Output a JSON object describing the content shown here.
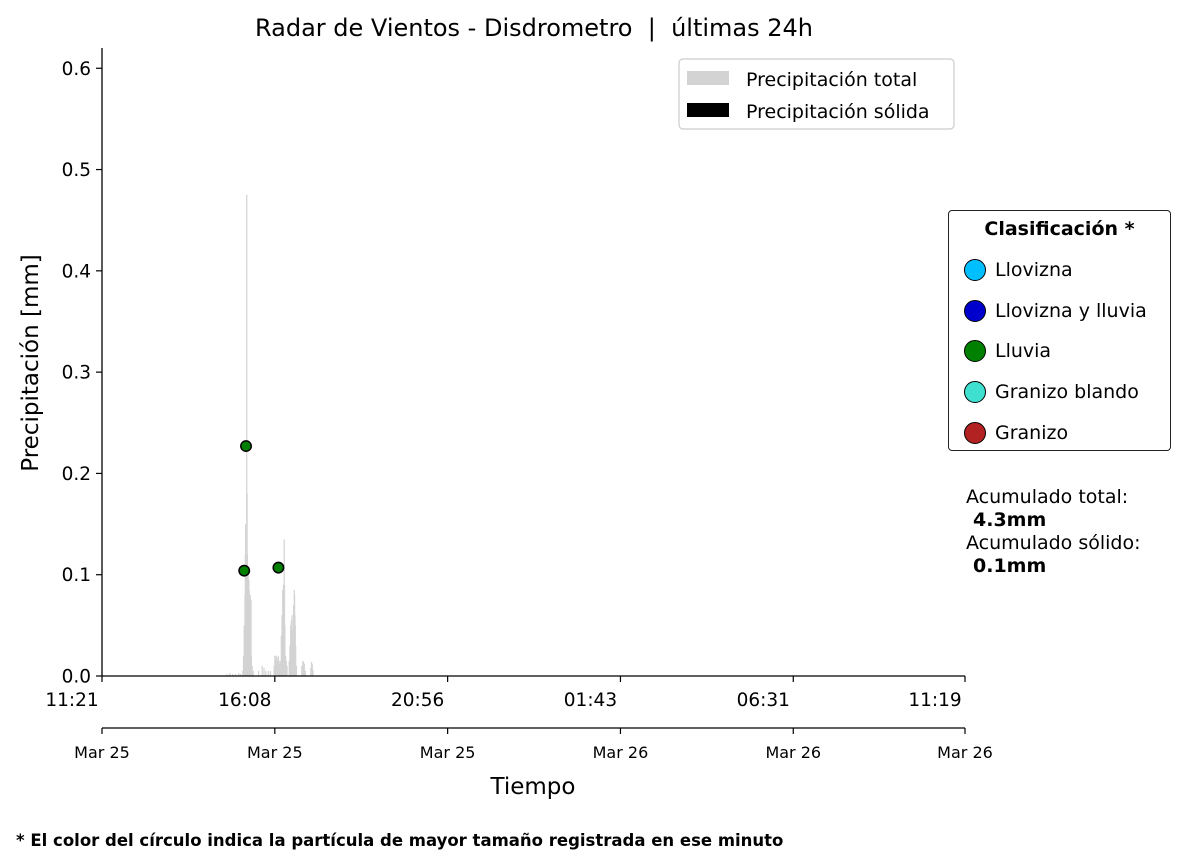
{
  "chart_data": {
    "type": "bar",
    "title": "Radar de Vientos - Disdrometro  |  últimas 24h",
    "xlabel": "Tiempo",
    "ylabel": "Precipitación [mm]",
    "ylim": [
      0,
      0.62
    ],
    "yticks": [
      "0.0",
      "0.1",
      "0.2",
      "0.3",
      "0.4",
      "0.5",
      "0.6"
    ],
    "xlim_hours": [
      0,
      23.97
    ],
    "xticks": [
      {
        "hour": 0,
        "time": "11:21",
        "date": "Mar 25"
      },
      {
        "hour": 4.8,
        "time": "16:08",
        "date": "Mar 25"
      },
      {
        "hour": 9.6,
        "time": "20:56",
        "date": "Mar 25"
      },
      {
        "hour": 14.4,
        "time": "01:43",
        "date": "Mar 26"
      },
      {
        "hour": 19.2,
        "time": "06:31",
        "date": "Mar 26"
      },
      {
        "hour": 23.97,
        "time": "11:19",
        "date": "Mar 26"
      }
    ],
    "legend": {
      "placement": "top-right",
      "entries": [
        {
          "label": "Precipitación total",
          "color": "#d3d3d3"
        },
        {
          "label": "Precipitación sólida",
          "color": "#000000"
        }
      ]
    },
    "series": [
      {
        "name": "Precipitación total",
        "color": "#d3d3d3",
        "points": [
          [
            3.47,
            0.002
          ],
          [
            3.55,
            0.003
          ],
          [
            3.63,
            0.002
          ],
          [
            3.71,
            0.002
          ],
          [
            3.8,
            0.003
          ],
          [
            3.85,
            0.002
          ],
          [
            3.91,
            0.005
          ],
          [
            3.93,
            0.02
          ],
          [
            3.95,
            0.05
          ],
          [
            3.97,
            0.08
          ],
          [
            3.98,
            0.12
          ],
          [
            3.99,
            0.15
          ],
          [
            4.0,
            0.1
          ],
          [
            4.01,
            0.07
          ],
          [
            4.02,
            0.475
          ],
          [
            4.03,
            0.18
          ],
          [
            4.04,
            0.12
          ],
          [
            4.05,
            0.09
          ],
          [
            4.06,
            0.1
          ],
          [
            4.07,
            0.08
          ],
          [
            4.08,
            0.095
          ],
          [
            4.09,
            0.085
          ],
          [
            4.1,
            0.075
          ],
          [
            4.11,
            0.07
          ],
          [
            4.12,
            0.08
          ],
          [
            4.13,
            0.07
          ],
          [
            4.14,
            0.075
          ],
          [
            4.15,
            0.02
          ],
          [
            4.17,
            0.01
          ],
          [
            4.2,
            0.005
          ],
          [
            4.35,
            0.005
          ],
          [
            4.45,
            0.01
          ],
          [
            4.5,
            0.008
          ],
          [
            4.55,
            0.005
          ],
          [
            4.62,
            0.005
          ],
          [
            4.68,
            0.005
          ],
          [
            4.78,
            0.01
          ],
          [
            4.8,
            0.02
          ],
          [
            4.82,
            0.015
          ],
          [
            4.84,
            0.02
          ],
          [
            4.86,
            0.018
          ],
          [
            4.88,
            0.015
          ],
          [
            4.9,
            0.02
          ],
          [
            4.92,
            0.015
          ],
          [
            4.94,
            0.012
          ],
          [
            4.96,
            0.015
          ],
          [
            4.98,
            0.04
          ],
          [
            5.0,
            0.06
          ],
          [
            5.02,
            0.085
          ],
          [
            5.03,
            0.07
          ],
          [
            5.04,
            0.09
          ],
          [
            5.05,
            0.075
          ],
          [
            5.06,
            0.135
          ],
          [
            5.07,
            0.09
          ],
          [
            5.08,
            0.05
          ],
          [
            5.1,
            0.02
          ],
          [
            5.12,
            0.015
          ],
          [
            5.14,
            0.01
          ],
          [
            5.2,
            0.015
          ],
          [
            5.22,
            0.03
          ],
          [
            5.24,
            0.05
          ],
          [
            5.26,
            0.055
          ],
          [
            5.28,
            0.06
          ],
          [
            5.3,
            0.045
          ],
          [
            5.32,
            0.07
          ],
          [
            5.34,
            0.085
          ],
          [
            5.35,
            0.08
          ],
          [
            5.36,
            0.06
          ],
          [
            5.37,
            0.05
          ],
          [
            5.38,
            0.03
          ],
          [
            5.4,
            0.01
          ],
          [
            5.55,
            0.01
          ],
          [
            5.58,
            0.015
          ],
          [
            5.6,
            0.014
          ],
          [
            5.62,
            0.012
          ],
          [
            5.65,
            0.005
          ],
          [
            5.8,
            0.008
          ],
          [
            5.82,
            0.014
          ],
          [
            5.84,
            0.012
          ],
          [
            5.86,
            0.006
          ]
        ]
      },
      {
        "name": "Precipitación sólida",
        "color": "#000000",
        "points": []
      }
    ],
    "particles": [
      {
        "hour": 3.95,
        "value": 0.104,
        "class": "Lluvia"
      },
      {
        "hour": 4.0,
        "value": 0.227,
        "class": "Lluvia"
      },
      {
        "hour": 4.9,
        "value": 0.107,
        "class": "Lluvia"
      }
    ]
  },
  "classification": {
    "title": "Clasificación *",
    "items": [
      {
        "label": "Llovizna",
        "color": "#00bfff"
      },
      {
        "label": "Llovizna y lluvia",
        "color": "#0000cd"
      },
      {
        "label": "Lluvia",
        "color": "#008000"
      },
      {
        "label": "Granizo blando",
        "color": "#40e0d0"
      },
      {
        "label": "Granizo",
        "color": "#b22222"
      }
    ]
  },
  "accumulated": {
    "total_label": "Acumulado total:",
    "total_value": "4.3mm",
    "solid_label": "Acumulado sólido:",
    "solid_value": "0.1mm"
  },
  "footnote": "* El color del círculo indica la partícula de mayor tamaño registrada en ese minuto"
}
